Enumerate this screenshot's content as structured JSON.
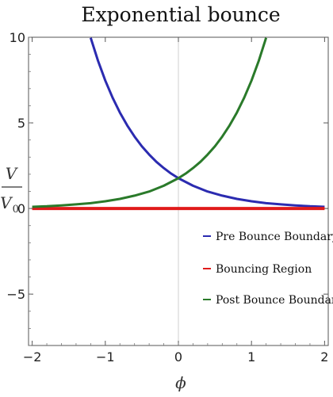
{
  "chart_data": {
    "type": "line",
    "title": "Exponential bounce",
    "xlabel": "ϕ",
    "ylabel": {
      "numerator": "V",
      "denominator": "V",
      "denominator_subscript": "0"
    },
    "xlim": [
      -2.05,
      2.05
    ],
    "ylim": [
      -8,
      10
    ],
    "xticks": [
      -2,
      -1,
      0,
      1,
      2
    ],
    "yticks": [
      -5,
      0,
      5,
      10
    ],
    "xtick_labels": [
      "−2",
      "−1",
      "0",
      "1",
      "2"
    ],
    "ytick_labels": [
      "−5",
      "0",
      "5",
      "10"
    ],
    "grid": false,
    "zero_lines": true,
    "legend_position": "bottom-right",
    "series": [
      {
        "name": "Pre Bounce Boundary",
        "color": "#2b2bb0",
        "x": [
          -1.2,
          -1.1,
          -1.0,
          -0.9,
          -0.8,
          -0.7,
          -0.6,
          -0.5,
          -0.4,
          -0.3,
          -0.2,
          -0.1,
          0.0,
          0.2,
          0.4,
          0.6,
          0.8,
          1.0,
          1.2,
          1.4,
          1.6,
          1.8,
          2.0
        ],
        "values": [
          9.97,
          8.63,
          7.47,
          6.47,
          5.6,
          4.85,
          4.2,
          3.63,
          3.15,
          2.72,
          2.36,
          2.04,
          1.77,
          1.33,
          0.99,
          0.75,
          0.56,
          0.42,
          0.31,
          0.24,
          0.18,
          0.13,
          0.1
        ]
      },
      {
        "name": "Bouncing Region",
        "color": "#e01b1b",
        "x": [
          -2.0,
          2.0
        ],
        "values": [
          0,
          0
        ]
      },
      {
        "name": "Post Bounce Boundary",
        "color": "#2a7a2a",
        "x": [
          -2.0,
          -1.8,
          -1.6,
          -1.4,
          -1.2,
          -1.0,
          -0.8,
          -0.6,
          -0.4,
          -0.2,
          0.0,
          0.1,
          0.2,
          0.3,
          0.4,
          0.5,
          0.6,
          0.7,
          0.8,
          0.9,
          1.0,
          1.1,
          1.2
        ],
        "values": [
          0.1,
          0.13,
          0.18,
          0.24,
          0.31,
          0.42,
          0.56,
          0.75,
          0.99,
          1.33,
          1.77,
          2.04,
          2.36,
          2.72,
          3.15,
          3.63,
          4.2,
          4.85,
          5.6,
          6.47,
          7.47,
          8.63,
          9.97
        ]
      }
    ]
  }
}
